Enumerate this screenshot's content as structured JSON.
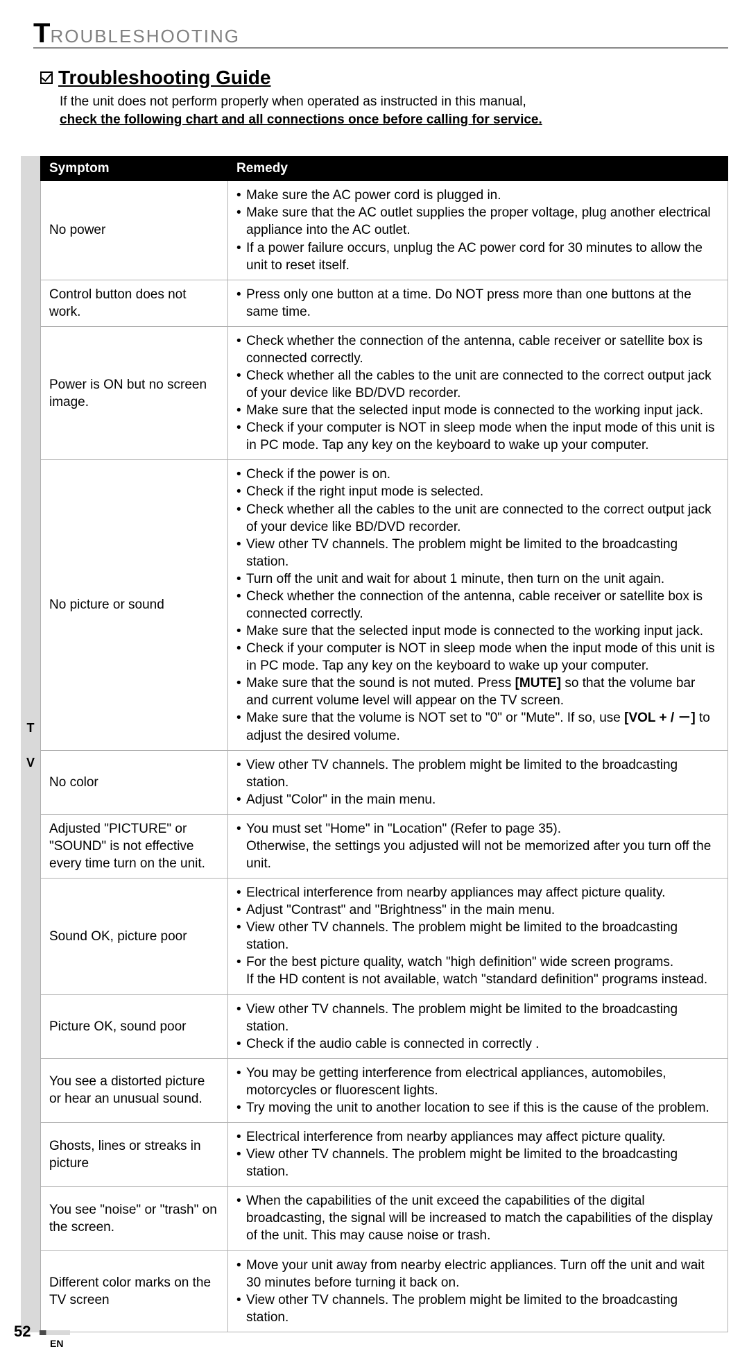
{
  "chapter": {
    "initial": "T",
    "rest": "ROUBLESHOOTING"
  },
  "section": {
    "title": "Troubleshooting Guide",
    "intro_line1": "If the unit does not perform properly when operated as instructed in this manual,",
    "intro_line2": "check the following chart and all connections once before calling for service."
  },
  "sidebar": {
    "top": "T",
    "bottom": "V"
  },
  "table": {
    "headers": {
      "symptom": "Symptom",
      "remedy": "Remedy"
    },
    "rows": [
      {
        "symptom": "No power",
        "remedies": [
          "Make sure the AC power cord is plugged in.",
          "Make sure that the AC outlet supplies the proper voltage, plug another electrical appliance into the AC outlet.",
          "If a power failure occurs, unplug the AC power cord for 30 minutes to allow the unit to reset itself."
        ]
      },
      {
        "symptom": "Control button does not work.",
        "remedies": [
          "Press only one button at a time. Do NOT press more than one buttons at the same time."
        ]
      },
      {
        "symptom": "Power is ON but no screen image.",
        "remedies": [
          "Check whether the connection of the antenna, cable receiver or satellite box is connected correctly.",
          "Check whether all the cables to the unit are connected to the correct output jack of your device like BD/DVD recorder.",
          "Make sure that the selected input mode is connected to the working input jack.",
          "Check if your computer is NOT in sleep mode when the input mode of this unit is in PC mode. Tap any key on the keyboard to wake up your computer."
        ]
      },
      {
        "symptom": "No picture or sound",
        "remedies": [
          "Check if the power is on.",
          "Check if the right input mode is selected.",
          "Check whether all the cables to the unit are connected to the correct output jack of your device like BD/DVD recorder.",
          "View other TV channels. The problem might be limited to the broadcasting station.",
          "Turn off the unit and wait for about 1 minute, then turn on the unit again.",
          "Check whether the connection of the antenna, cable receiver or satellite box is connected correctly.",
          "Make sure that the selected input mode is connected to the working input jack.",
          "Check if your computer is NOT in sleep mode when the input mode of this unit is in PC mode. Tap any key on the keyboard to wake up your computer.",
          "Make sure that the sound is not muted. Press <b>[MUTE]</b> so that the volume bar and current volume level will appear on the TV screen.",
          "Make sure that the volume is NOT set to \"0\" or \"Mute\". If so, use <b>[VOL + / －]</b> to adjust the desired volume."
        ]
      },
      {
        "symptom": "No color",
        "remedies": [
          "View other TV channels. The problem might be limited to the broadcasting station.",
          "Adjust \"Color\" in the main menu."
        ]
      },
      {
        "symptom": "Adjusted \"PICTURE\" or \"SOUND\" is not effective every time turn on the unit.",
        "remedies": [
          "You must set \"Home\" in \"Location\" (Refer to page 35).<br>Otherwise, the settings you adjusted will not be memorized after you turn off the unit."
        ]
      },
      {
        "symptom": "Sound OK, picture poor",
        "remedies": [
          "Electrical interference from nearby appliances may affect picture quality.",
          "Adjust \"Contrast\" and \"Brightness\" in the main menu.",
          "View other TV channels. The problem might be limited to the broadcasting station.",
          "For the best picture quality, watch \"high definition\" wide screen programs.<br>If the HD content is not available, watch \"standard definition\" programs instead."
        ]
      },
      {
        "symptom": "Picture OK, sound poor",
        "remedies": [
          "View other TV channels. The problem might be limited to the broadcasting station.",
          "Check if the audio cable is connected in correctly ."
        ]
      },
      {
        "symptom": "You see a distorted picture or hear an unusual sound.",
        "remedies": [
          "You may be getting interference from electrical appliances, automobiles, motorcycles or fluorescent lights.",
          "Try moving the unit to another location to see if this is the cause of the problem."
        ]
      },
      {
        "symptom": "Ghosts, lines or streaks in picture",
        "remedies": [
          "Electrical interference from nearby appliances may affect picture quality.",
          "View other TV channels. The problem might be limited to the broadcasting station."
        ]
      },
      {
        "symptom": "You see \"noise\" or \"trash\" on the screen.",
        "remedies": [
          "When the capabilities of the unit exceed the capabilities of the digital broadcasting, the signal will be increased to match the capabilities of the display of the unit. This may cause noise or trash."
        ]
      },
      {
        "symptom": "Different color marks on the TV screen",
        "remedies": [
          "Move your unit away from nearby electric appliances. Turn off the unit and wait 30 minutes before turning it back on.",
          "View other TV channels. The problem might be limited to the broadcasting station."
        ]
      }
    ]
  },
  "footer": {
    "page": "52",
    "lang": "EN"
  }
}
